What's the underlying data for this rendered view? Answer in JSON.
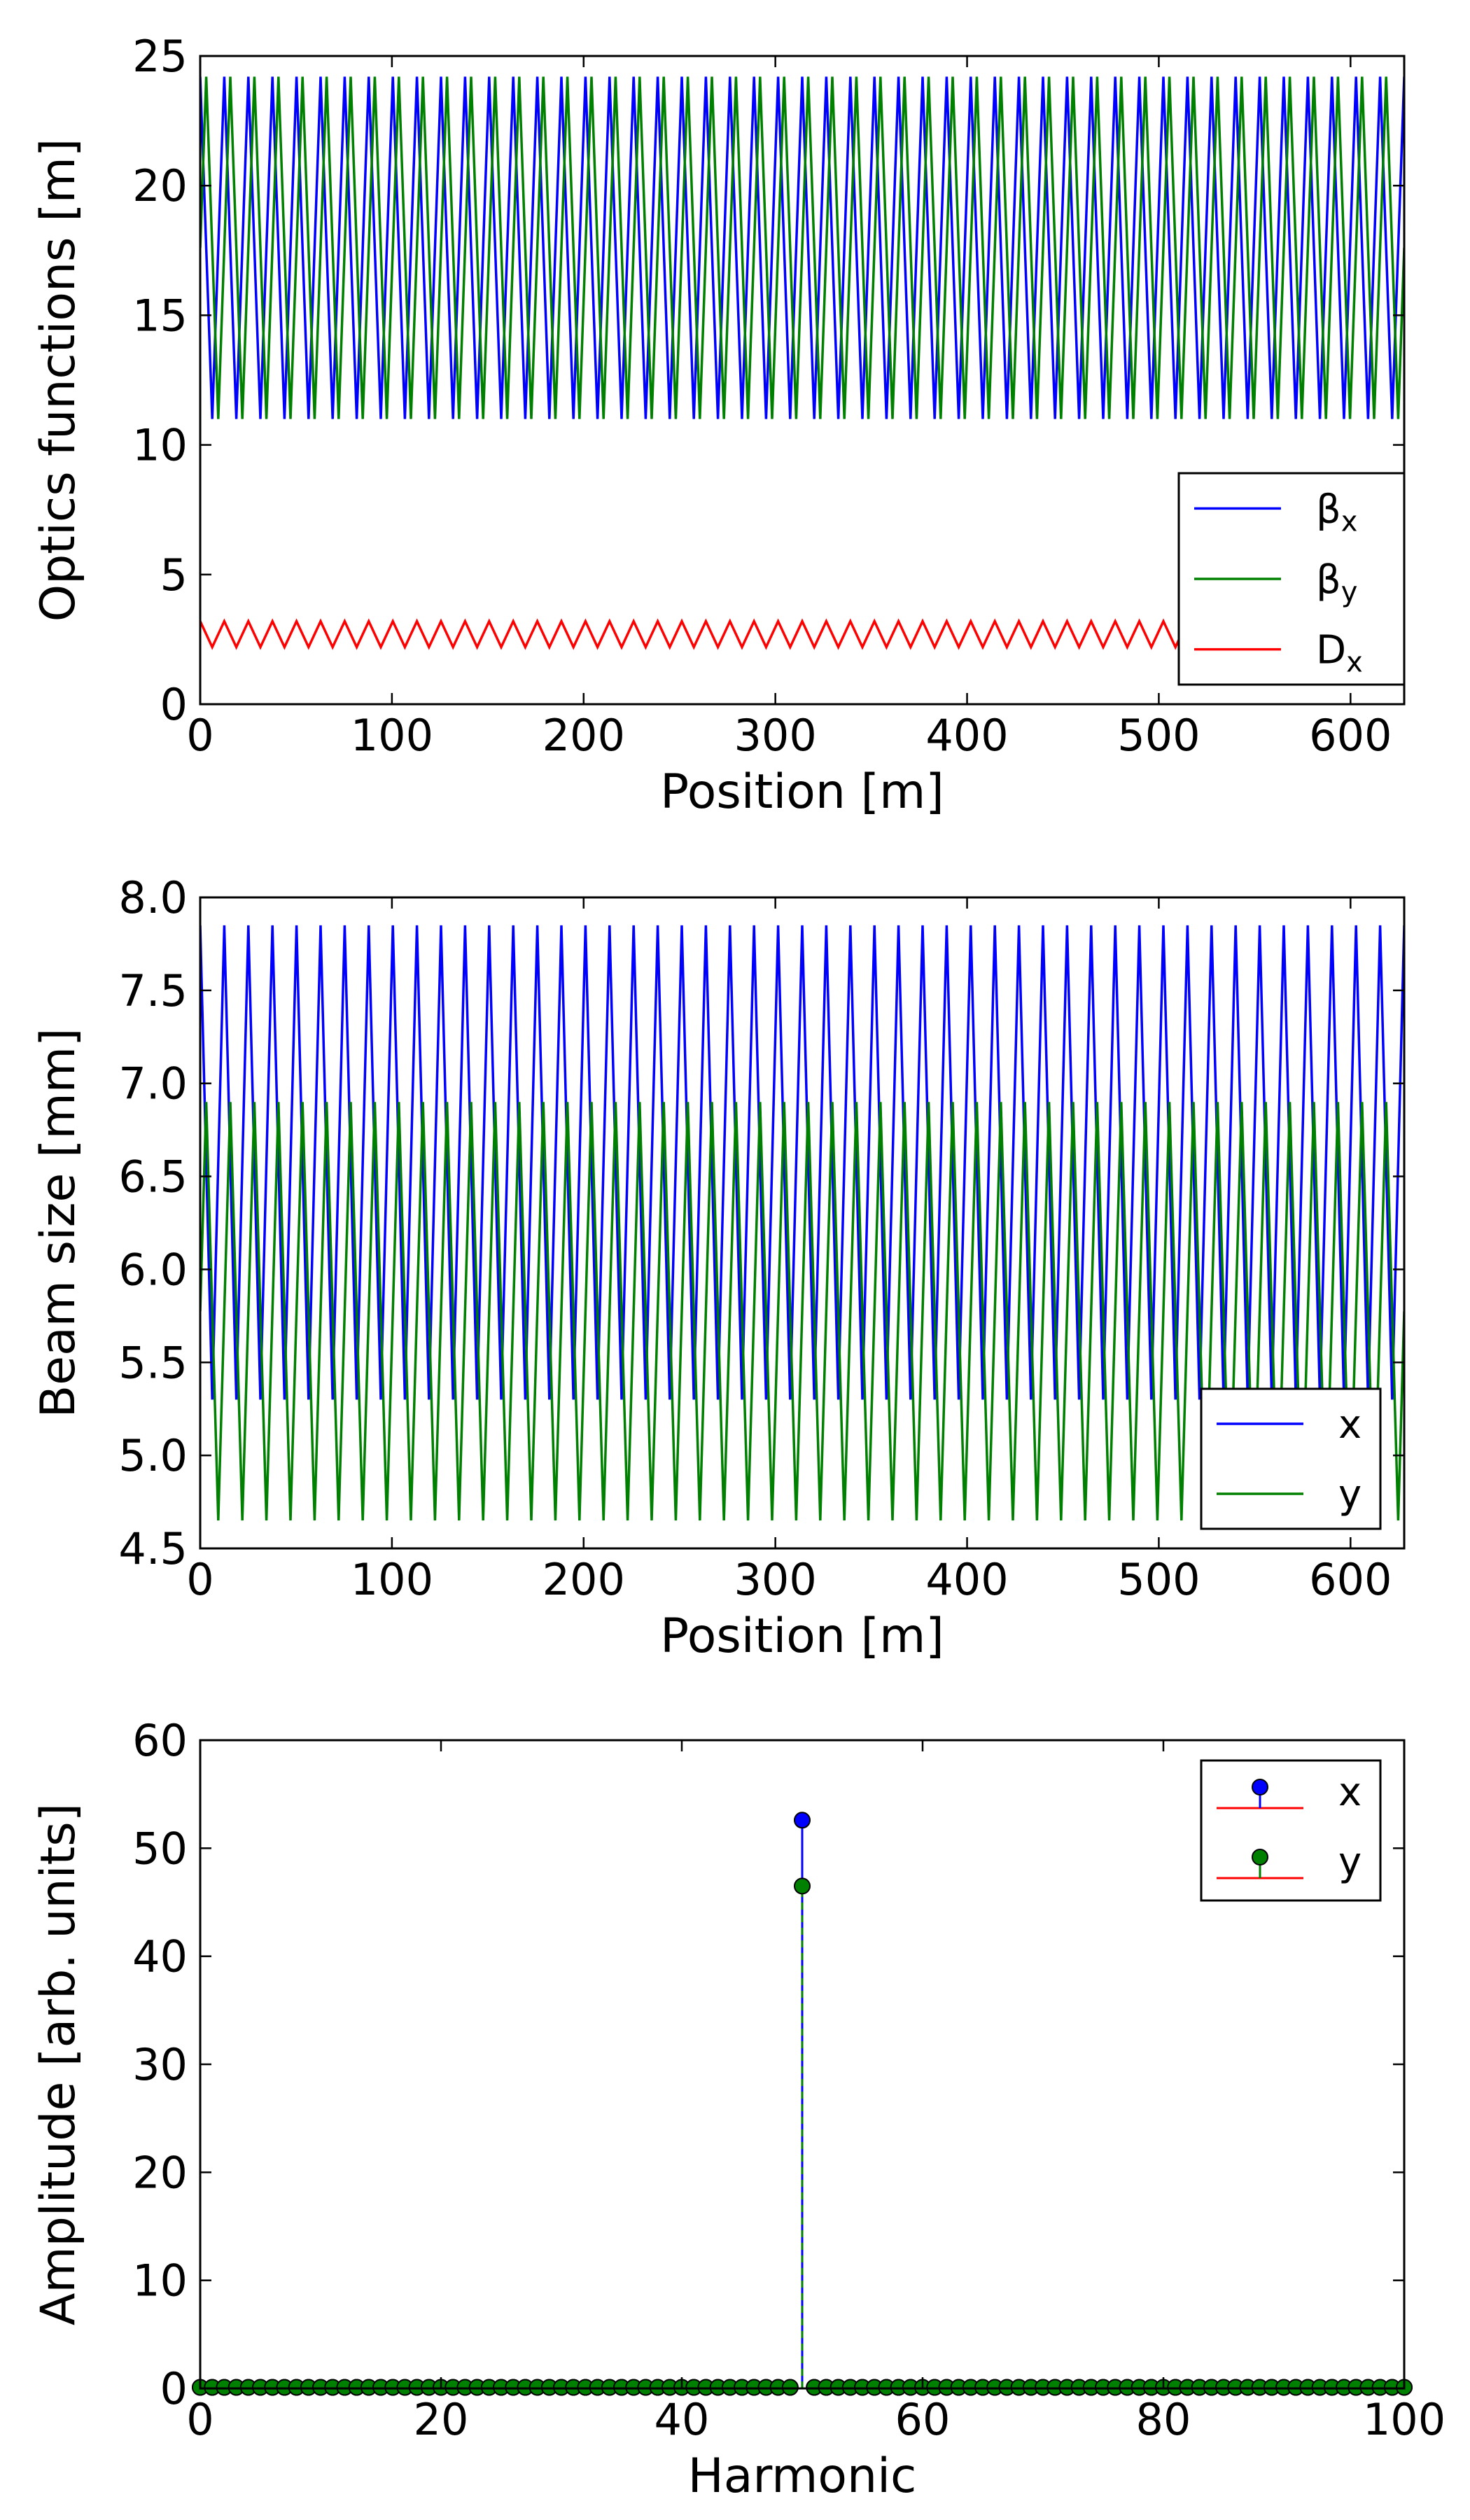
{
  "chart_data": [
    {
      "type": "line",
      "xlabel": "Position [m]",
      "ylabel": "Optics functions [m]",
      "xlim": [
        0,
        628
      ],
      "ylim": [
        0,
        25
      ],
      "xticks": [
        0,
        100,
        200,
        300,
        400,
        500,
        600
      ],
      "yticks": [
        0,
        5,
        10,
        15,
        20,
        25
      ],
      "grid": false,
      "legend": "lower-right",
      "period_m": 12.56,
      "series": [
        {
          "name": "βx",
          "label_base": "β",
          "label_sub": "x",
          "color": "#0000ff",
          "min": 11.0,
          "max": 24.2,
          "phase": 0
        },
        {
          "name": "βy",
          "label_base": "β",
          "label_sub": "y",
          "color": "#008000",
          "min": 11.0,
          "max": 24.2,
          "phase": 0.5
        },
        {
          "name": "Dx",
          "label_base": "D",
          "label_sub": "x",
          "color": "#ff0000",
          "min": 2.2,
          "max": 3.2,
          "phase": 0
        }
      ]
    },
    {
      "type": "line",
      "xlabel": "Position [m]",
      "ylabel": "Beam size [mm]",
      "xlim": [
        0,
        628
      ],
      "ylim": [
        4.5,
        8.0
      ],
      "xticks": [
        0,
        100,
        200,
        300,
        400,
        500,
        600
      ],
      "yticks": [
        "4.5",
        "5.0",
        "5.5",
        "6.0",
        "6.5",
        "7.0",
        "7.5",
        "8.0"
      ],
      "grid": false,
      "legend": "lower-right",
      "period_m": 12.56,
      "series": [
        {
          "name": "x",
          "color": "#0000ff",
          "min": 5.3,
          "max": 7.85,
          "phase": 0
        },
        {
          "name": "y",
          "color": "#008000",
          "min": 4.65,
          "max": 6.9,
          "phase": 0.5
        }
      ]
    },
    {
      "type": "scatter",
      "subtype": "stem",
      "xlabel": "Harmonic",
      "ylabel": "Amplitude [arb. units]",
      "xlim": [
        0,
        100
      ],
      "ylim": [
        0,
        60
      ],
      "xticks": [
        0,
        20,
        40,
        60,
        80,
        100
      ],
      "yticks": [
        0,
        10,
        20,
        30,
        40,
        50,
        60
      ],
      "grid": false,
      "legend": "top-right",
      "harmonics": [
        0,
        100
      ],
      "baseline_color": "#ff0000",
      "series": [
        {
          "name": "x",
          "color": "#0000ff",
          "peaks": [
            {
              "harmonic": 50,
              "amplitude": 52.6
            }
          ],
          "background": 0.1
        },
        {
          "name": "y",
          "color": "#008000",
          "peaks": [
            {
              "harmonic": 50,
              "amplitude": 46.5
            }
          ],
          "background": 0.1
        }
      ]
    }
  ]
}
